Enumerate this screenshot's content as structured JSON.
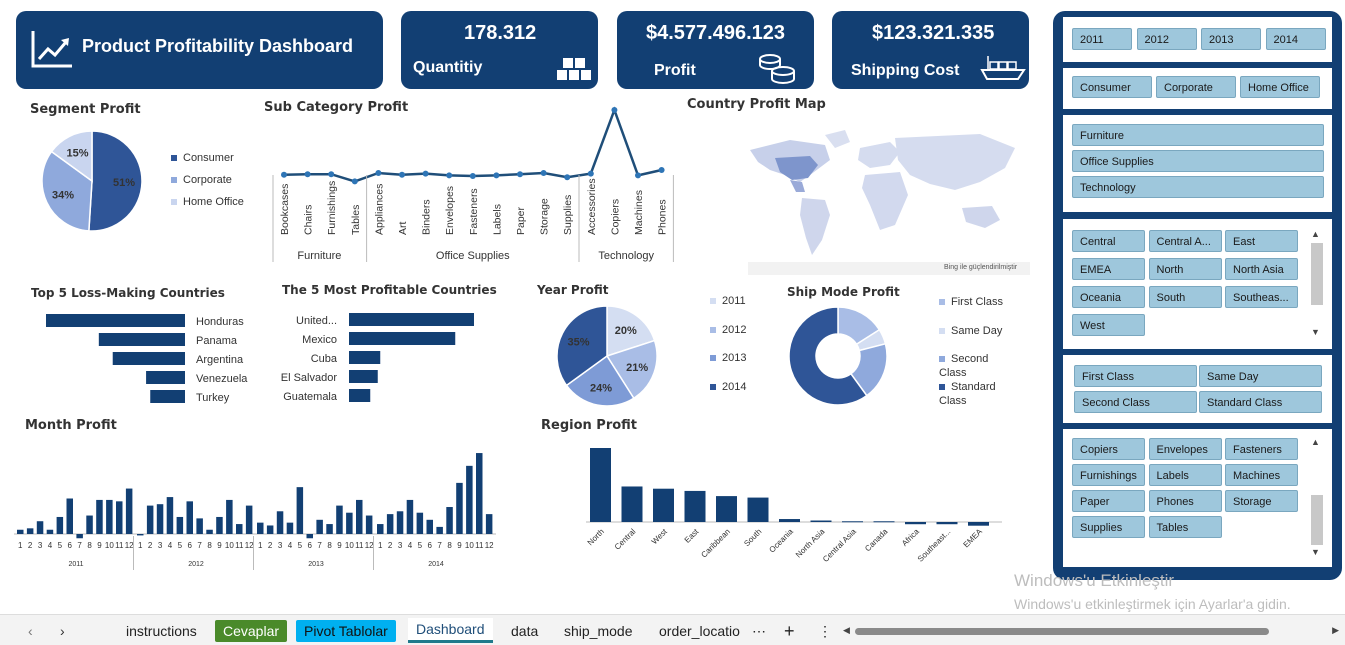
{
  "header": {
    "title": "Product Profitability Dashboard"
  },
  "kpis": [
    {
      "value": "178.312",
      "label": "Quantitiy",
      "icon": "boxes-icon"
    },
    {
      "value": "$4.577.496.123",
      "label": "Profit",
      "icon": "coins-icon"
    },
    {
      "value": "$123.321.335",
      "label": "Shipping Cost",
      "icon": "ship-icon"
    }
  ],
  "segment": {
    "title": "Segment Profit",
    "slices": [
      {
        "name": "Consumer",
        "pct": 51,
        "label": "51%",
        "color": "#2f5597"
      },
      {
        "name": "Corporate",
        "pct": 34,
        "label": "34%",
        "color": "#8fa9dc"
      },
      {
        "name": "Home Office",
        "pct": 15,
        "label": "15%",
        "color": "#c9d5ef"
      }
    ]
  },
  "subcategory": {
    "title": "Sub Category Profit",
    "groups": [
      {
        "name": "Furniture",
        "items": [
          "Bookcases",
          "Chairs",
          "Furnishings",
          "Tables"
        ]
      },
      {
        "name": "Office Supplies",
        "items": [
          "Appliances",
          "Art",
          "Binders",
          "Envelopes",
          "Fasteners",
          "Labels",
          "Paper",
          "Storage",
          "Supplies"
        ]
      },
      {
        "name": "Technology",
        "items": [
          "Accessories",
          "Copiers",
          "Machines",
          "Phones"
        ]
      }
    ],
    "values": [
      2,
      3,
      3,
      -9,
      5,
      2,
      4,
      1,
      0,
      1,
      3,
      5,
      -2,
      4,
      110,
      1,
      10
    ]
  },
  "map": {
    "title": "Country Profit Map",
    "credit": "Bing ile güçlendirilmiştir"
  },
  "loss": {
    "title": "Top 5 Loss-Making Countries",
    "items": [
      {
        "name": "Honduras",
        "value": 100
      },
      {
        "name": "Panama",
        "value": 62
      },
      {
        "name": "Argentina",
        "value": 52
      },
      {
        "name": "Venezuela",
        "value": 28
      },
      {
        "name": "Turkey",
        "value": 25
      }
    ]
  },
  "profitable": {
    "title": "The 5 Most Profitable Countries",
    "items": [
      {
        "name": "United...",
        "value": 100
      },
      {
        "name": "Mexico",
        "value": 85
      },
      {
        "name": "Cuba",
        "value": 25
      },
      {
        "name": "El Salvador",
        "value": 23
      },
      {
        "name": "Guatemala",
        "value": 17
      }
    ]
  },
  "year": {
    "title": "Year Profit",
    "slices": [
      {
        "name": "2011",
        "pct": 20,
        "label": "20%",
        "color": "#d4def2"
      },
      {
        "name": "2012",
        "pct": 21,
        "label": "21%",
        "color": "#a9bde6"
      },
      {
        "name": "2013",
        "pct": 24,
        "label": "24%",
        "color": "#7e9bd6"
      },
      {
        "name": "2014",
        "pct": 35,
        "label": "35%",
        "color": "#2f5597"
      }
    ]
  },
  "shipmode": {
    "title": "Ship Mode Profit",
    "slices": [
      {
        "name": "First Class",
        "pct": 16,
        "color": "#a9bde6"
      },
      {
        "name": "Same Day",
        "pct": 5,
        "color": "#d4def2"
      },
      {
        "name": "Second Class",
        "pct": 19,
        "color": "#8fa9dc"
      },
      {
        "name": "Standard Class",
        "pct": 60,
        "color": "#2f5597"
      }
    ]
  },
  "month": {
    "title": "Month Profit",
    "years": [
      "2011",
      "2012",
      "2013",
      "2014"
    ],
    "months": [
      "1",
      "2",
      "3",
      "4",
      "5",
      "6",
      "7",
      "8",
      "9",
      "10",
      "11",
      "12"
    ],
    "values": [
      [
        3,
        4,
        9,
        3,
        12,
        25,
        -3,
        13,
        24,
        24,
        23,
        32
      ],
      [
        -1,
        20,
        21,
        26,
        12,
        23,
        11,
        3,
        12,
        24,
        7,
        20
      ],
      [
        8,
        6,
        16,
        8,
        33,
        -3,
        10,
        7,
        20,
        15,
        24,
        13
      ],
      [
        7,
        14,
        16,
        24,
        15,
        10,
        5,
        19,
        36,
        48,
        57,
        14
      ]
    ]
  },
  "region": {
    "title": "Region Profit",
    "categories": [
      "North",
      "Central",
      "West",
      "East",
      "Caribbean",
      "South",
      "Oceania",
      "North Asia",
      "Central Asia",
      "Canada",
      "Africa",
      "Southeast...",
      "EMEA"
    ],
    "values": [
      100,
      48,
      45,
      42,
      35,
      33,
      4,
      2,
      1,
      1,
      -3,
      -3,
      -5
    ]
  },
  "slicers": {
    "years": [
      "2011",
      "2012",
      "2013",
      "2014"
    ],
    "segments": [
      "Consumer",
      "Corporate",
      "Home Office"
    ],
    "categories": [
      "Furniture",
      "Office Supplies",
      "Technology"
    ],
    "regions": [
      "Central",
      "Central A...",
      "East",
      "EMEA",
      "North",
      "North Asia",
      "Oceania",
      "South",
      "Southeas...",
      "West"
    ],
    "shipmodes": [
      "First Class",
      "Same Day",
      "Second Class",
      "Standard Class"
    ],
    "subcats": [
      "Copiers",
      "Envelopes",
      "Fasteners",
      "Furnishings",
      "Labels",
      "Machines",
      "Paper",
      "Phones",
      "Storage",
      "Supplies",
      "Tables"
    ]
  },
  "sheet_tabs": [
    "instructions",
    "Cevaplar",
    "Pivot Tablolar",
    "Dashboard",
    "data",
    "ship_mode",
    "order_locatio"
  ],
  "watermark": {
    "line1": "Windows'u Etkinleştir",
    "line2": "Windows'u etkinleştirmek için Ayarlar'a gidin."
  }
}
